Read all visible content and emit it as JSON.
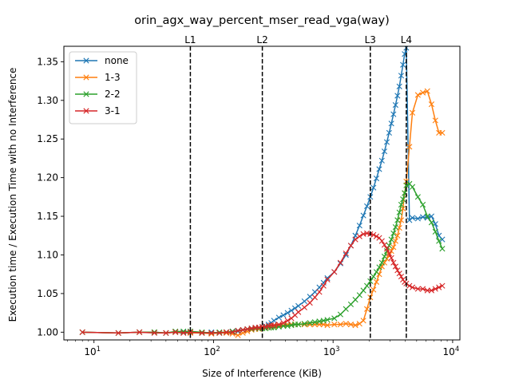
{
  "chart_data": {
    "type": "line",
    "title": "orin_agx_way_percent_mser_read_vga(way)",
    "xlabel": "Size of Interference (KiB)",
    "ylabel": "Execution time / Execution Time with no Interference",
    "xscale": "log",
    "xlim": [
      5.6,
      11500
    ],
    "ylim": [
      0.99,
      1.37
    ],
    "x_ticks": [
      {
        "value": 10,
        "label": "10",
        "sup": "1"
      },
      {
        "value": 100,
        "label": "10",
        "sup": "2"
      },
      {
        "value": 1000,
        "label": "10",
        "sup": "3"
      },
      {
        "value": 10000,
        "label": "10",
        "sup": "4"
      }
    ],
    "y_ticks": [
      1.0,
      1.05,
      1.1,
      1.15,
      1.2,
      1.25,
      1.3,
      1.35
    ],
    "y_tick_labels": [
      "1.00",
      "1.05",
      "1.10",
      "1.15",
      "1.20",
      "1.25",
      "1.30",
      "1.35"
    ],
    "grid": false,
    "legend": "top-left",
    "vlines": [
      {
        "x": 64,
        "label": "L1"
      },
      {
        "x": 256,
        "label": "L2"
      },
      {
        "x": 2048,
        "label": "L3"
      },
      {
        "x": 4096,
        "label": "L4"
      }
    ],
    "series": [
      {
        "name": "none",
        "color": "#1f77b4",
        "x": [
          8,
          16,
          24,
          32,
          40,
          48,
          56,
          64,
          80,
          96,
          112,
          128,
          144,
          160,
          176,
          192,
          208,
          224,
          240,
          256,
          272,
          288,
          304,
          320,
          352,
          384,
          416,
          448,
          480,
          512,
          576,
          640,
          704,
          768,
          832,
          896,
          1024,
          1152,
          1280,
          1408,
          1536,
          1664,
          1792,
          1920,
          2048,
          2176,
          2304,
          2432,
          2560,
          2688,
          2816,
          2944,
          3072,
          3200,
          3328,
          3456,
          3584,
          3712,
          3840,
          3968,
          4096,
          4352,
          4608,
          5120,
          5632,
          6144,
          6656,
          7168,
          7680,
          8192
        ],
        "y": [
          1.0,
          0.999,
          1.0,
          1.0,
          0.999,
          1.0,
          1.0,
          1.0,
          0.999,
          1.0,
          0.999,
          1.0,
          1.001,
          1.001,
          1.003,
          1.004,
          1.005,
          1.005,
          1.006,
          1.007,
          1.008,
          1.01,
          1.012,
          1.015,
          1.019,
          1.022,
          1.025,
          1.028,
          1.031,
          1.034,
          1.04,
          1.046,
          1.052,
          1.058,
          1.064,
          1.07,
          1.078,
          1.089,
          1.1,
          1.112,
          1.125,
          1.138,
          1.151,
          1.163,
          1.175,
          1.187,
          1.199,
          1.211,
          1.222,
          1.234,
          1.246,
          1.258,
          1.27,
          1.282,
          1.294,
          1.306,
          1.318,
          1.332,
          1.346,
          1.36,
          1.368,
          1.145,
          1.148,
          1.147,
          1.149,
          1.148,
          1.15,
          1.14,
          1.125,
          1.12
        ]
      },
      {
        "name": "1-3",
        "color": "#ff7f0e",
        "x": [
          8,
          16,
          24,
          32,
          40,
          48,
          56,
          64,
          80,
          96,
          112,
          128,
          144,
          160,
          176,
          192,
          208,
          224,
          240,
          256,
          272,
          288,
          304,
          320,
          352,
          384,
          416,
          448,
          480,
          512,
          576,
          640,
          704,
          768,
          832,
          896,
          1024,
          1152,
          1280,
          1408,
          1536,
          1664,
          1792,
          1920,
          2048,
          2176,
          2304,
          2432,
          2560,
          2688,
          2816,
          2944,
          3072,
          3200,
          3328,
          3456,
          3584,
          3712,
          3840,
          3968,
          4096,
          4352,
          4608,
          5120,
          5632,
          6144,
          6656,
          7168,
          7680,
          8192
        ],
        "y": [
          1.0,
          0.999,
          1.0,
          1.0,
          0.999,
          1.0,
          0.999,
          0.999,
          0.999,
          0.998,
          0.999,
          0.999,
          0.998,
          0.996,
          0.999,
          1.001,
          1.003,
          1.004,
          1.004,
          1.005,
          1.005,
          1.006,
          1.007,
          1.008,
          1.008,
          1.009,
          1.01,
          1.01,
          1.01,
          1.01,
          1.01,
          1.01,
          1.01,
          1.01,
          1.01,
          1.009,
          1.01,
          1.01,
          1.011,
          1.01,
          1.009,
          1.011,
          1.015,
          1.03,
          1.045,
          1.055,
          1.065,
          1.075,
          1.085,
          1.09,
          1.095,
          1.1,
          1.105,
          1.11,
          1.118,
          1.125,
          1.135,
          1.145,
          1.16,
          1.18,
          1.195,
          1.24,
          1.284,
          1.307,
          1.31,
          1.312,
          1.295,
          1.274,
          1.258,
          1.258
        ]
      },
      {
        "name": "2-2",
        "color": "#2ca02c",
        "x": [
          8,
          16,
          24,
          32,
          40,
          48,
          56,
          64,
          80,
          96,
          112,
          128,
          144,
          160,
          176,
          192,
          208,
          224,
          240,
          256,
          272,
          288,
          304,
          320,
          352,
          384,
          416,
          448,
          480,
          512,
          576,
          640,
          704,
          768,
          832,
          896,
          1024,
          1152,
          1280,
          1408,
          1536,
          1664,
          1792,
          1920,
          2048,
          2176,
          2304,
          2432,
          2560,
          2688,
          2816,
          2944,
          3072,
          3200,
          3328,
          3456,
          3584,
          3712,
          3840,
          3968,
          4096,
          4352,
          4608,
          5120,
          5632,
          6144,
          6656,
          7168,
          7680,
          8192
        ],
        "y": [
          1.0,
          0.999,
          1.0,
          1.0,
          0.999,
          1.001,
          1.001,
          1.001,
          1.0,
          0.999,
          1.0,
          1.0,
          1.001,
          1.002,
          1.003,
          1.004,
          1.004,
          1.005,
          1.005,
          1.005,
          1.005,
          1.006,
          1.006,
          1.006,
          1.007,
          1.008,
          1.008,
          1.009,
          1.01,
          1.01,
          1.011,
          1.012,
          1.013,
          1.014,
          1.015,
          1.016,
          1.018,
          1.023,
          1.03,
          1.036,
          1.042,
          1.048,
          1.054,
          1.06,
          1.066,
          1.072,
          1.078,
          1.084,
          1.09,
          1.098,
          1.105,
          1.112,
          1.12,
          1.128,
          1.136,
          1.145,
          1.155,
          1.165,
          1.172,
          1.18,
          1.19,
          1.192,
          1.188,
          1.175,
          1.165,
          1.15,
          1.142,
          1.13,
          1.118,
          1.108
        ]
      },
      {
        "name": "3-1",
        "color": "#d62728",
        "x": [
          8,
          16,
          24,
          32,
          40,
          48,
          56,
          64,
          80,
          96,
          112,
          128,
          144,
          160,
          176,
          192,
          208,
          224,
          240,
          256,
          272,
          288,
          304,
          320,
          352,
          384,
          416,
          448,
          480,
          512,
          576,
          640,
          704,
          768,
          832,
          896,
          1024,
          1152,
          1280,
          1408,
          1536,
          1664,
          1792,
          1920,
          2048,
          2176,
          2304,
          2432,
          2560,
          2688,
          2816,
          2944,
          3072,
          3200,
          3328,
          3456,
          3584,
          3712,
          3840,
          3968,
          4096,
          4352,
          4608,
          5120,
          5632,
          6144,
          6656,
          7168,
          7680,
          8192
        ],
        "y": [
          1.0,
          0.999,
          1.0,
          0.999,
          0.999,
          1.0,
          0.999,
          1.0,
          0.999,
          0.999,
          0.999,
          1.0,
          1.0,
          1.002,
          1.003,
          1.004,
          1.005,
          1.006,
          1.006,
          1.007,
          1.007,
          1.008,
          1.009,
          1.009,
          1.01,
          1.012,
          1.015,
          1.018,
          1.022,
          1.026,
          1.032,
          1.038,
          1.045,
          1.052,
          1.06,
          1.068,
          1.078,
          1.09,
          1.102,
          1.112,
          1.12,
          1.124,
          1.127,
          1.128,
          1.127,
          1.126,
          1.124,
          1.122,
          1.118,
          1.113,
          1.108,
          1.102,
          1.096,
          1.09,
          1.085,
          1.08,
          1.076,
          1.072,
          1.068,
          1.065,
          1.063,
          1.06,
          1.058,
          1.056,
          1.056,
          1.054,
          1.054,
          1.056,
          1.058,
          1.06
        ]
      }
    ]
  }
}
